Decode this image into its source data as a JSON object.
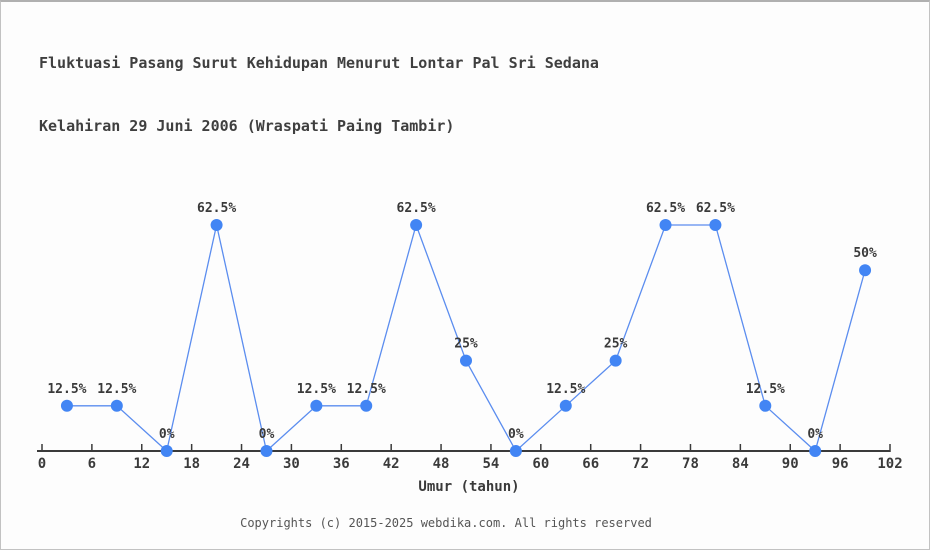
{
  "title": {
    "line1": "Fluktuasi Pasang Surut Kehidupan Menurut Lontar Pal Sri Sedana",
    "line2": "Kelahiran 29 Juni 2006 (Wraspati Paing Tambir)"
  },
  "footer": {
    "text": "Copyrights (c) 2015-2025 webdika.com. All rights reserved"
  },
  "chart_data": {
    "type": "line",
    "title": "Fluktuasi Pasang Surut Kehidupan Menurut Lontar Pal Sri Sedana Kelahiran 29 Juni 2006 (Wraspati Paing Tambir)",
    "xlabel": "Umur (tahun)",
    "ylabel": "",
    "x": [
      3,
      9,
      15,
      21,
      27,
      33,
      39,
      45,
      51,
      57,
      63,
      69,
      75,
      81,
      87,
      93,
      99
    ],
    "values": [
      12.5,
      12.5,
      0,
      62.5,
      0,
      12.5,
      12.5,
      62.5,
      25,
      0,
      12.5,
      25,
      62.5,
      62.5,
      12.5,
      0,
      50
    ],
    "point_labels": [
      "12.5%",
      "12.5%",
      "0%",
      "62.5%",
      "0%",
      "12.5%",
      "12.5%",
      "62.5%",
      "25%",
      "0%",
      "12.5%",
      "25%",
      "62.5%",
      "62.5%",
      "12.5%",
      "0%",
      "50%"
    ],
    "x_ticks": [
      0,
      6,
      12,
      18,
      24,
      30,
      36,
      42,
      48,
      54,
      60,
      66,
      72,
      78,
      84,
      90,
      96,
      102
    ],
    "xlim": [
      0,
      102
    ],
    "ylim": [
      0,
      70
    ],
    "grid": false,
    "legend": "none",
    "colors": {
      "marker": "#4285f4",
      "line": "#5b8def",
      "axis": "#3a3a3a",
      "text": "#3a3a3a"
    }
  }
}
